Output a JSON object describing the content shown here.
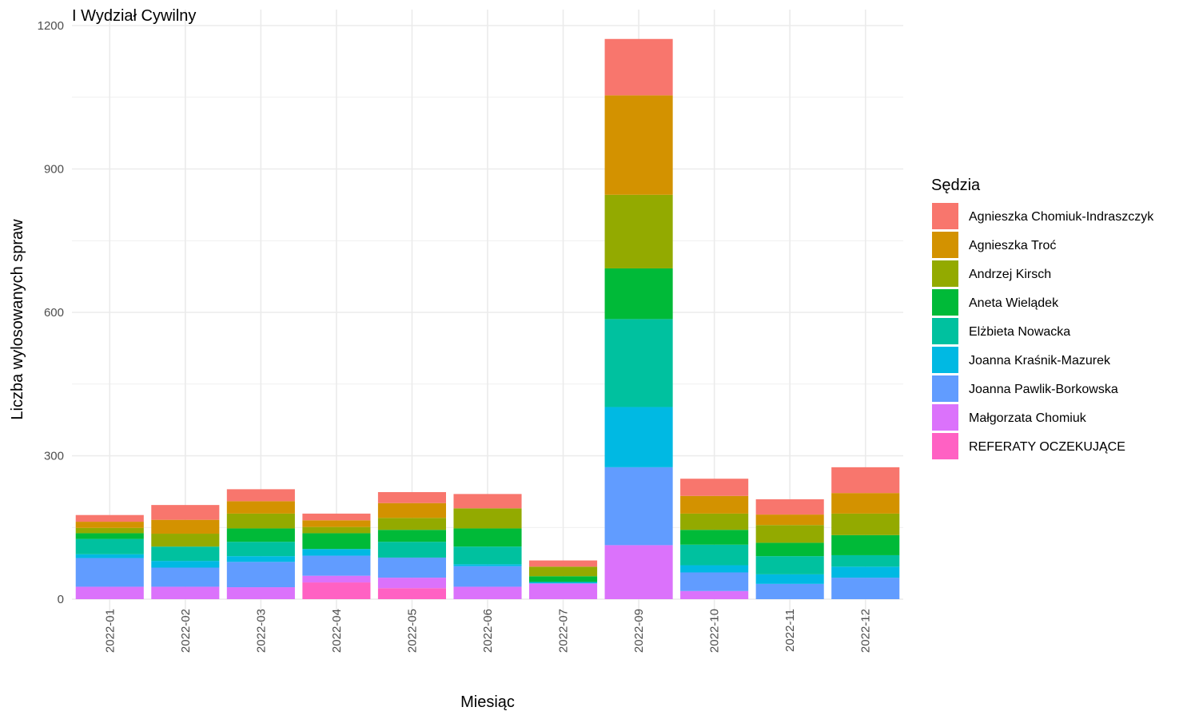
{
  "chart_data": {
    "type": "bar",
    "stacked": true,
    "title": "I Wydział Cywilny",
    "xlabel": "Miesiąc",
    "ylabel": "Liczba wylosowanych spraw",
    "ylim": [
      0,
      1200
    ],
    "yticks": [
      0,
      300,
      600,
      900,
      1200
    ],
    "grid": true,
    "legend_title": "Sędzia",
    "legend_position": "right",
    "categories": [
      "2022-01",
      "2022-02",
      "2022-03",
      "2022-04",
      "2022-05",
      "2022-06",
      "2022-07",
      "2022-09",
      "2022-10",
      "2022-11",
      "2022-12"
    ],
    "series": [
      {
        "name": "Agnieszka Chomiuk-Indraszczyk",
        "color": "#F8766D",
        "values": [
          14,
          31,
          25,
          14,
          23,
          30,
          13,
          118,
          36,
          32,
          54
        ]
      },
      {
        "name": "Agnieszka Troć",
        "color": "#D39200",
        "values": [
          13,
          29,
          26,
          14,
          31,
          0,
          0,
          208,
          37,
          22,
          43
        ]
      },
      {
        "name": "Andrzej Kirsch",
        "color": "#93AA00",
        "values": [
          11,
          27,
          31,
          13,
          25,
          42,
          20,
          154,
          34,
          37,
          45
        ]
      },
      {
        "name": "Aneta Wielądek",
        "color": "#00BA38",
        "values": [
          12,
          0,
          28,
          33,
          25,
          38,
          12,
          106,
          31,
          28,
          42
        ]
      },
      {
        "name": "Elżbieta Nowacka",
        "color": "#00C19F",
        "values": [
          32,
          30,
          30,
          0,
          33,
          37,
          0,
          184,
          43,
          38,
          24
        ]
      },
      {
        "name": "Joanna Kraśnik-Mazurek",
        "color": "#00B9E3",
        "values": [
          8,
          14,
          12,
          14,
          0,
          4,
          3,
          126,
          15,
          20,
          23
        ]
      },
      {
        "name": "Joanna Pawlik-Borkowska",
        "color": "#619CFF",
        "values": [
          60,
          40,
          53,
          42,
          42,
          43,
          0,
          163,
          39,
          32,
          45
        ]
      },
      {
        "name": "Małgorzata Chomiuk",
        "color": "#DB72FB",
        "values": [
          26,
          26,
          25,
          14,
          22,
          26,
          33,
          113,
          17,
          0,
          0
        ]
      },
      {
        "name": "REFERATY OCZEKUJĄCE",
        "color": "#FF61C3",
        "values": [
          0,
          0,
          0,
          35,
          23,
          0,
          0,
          0,
          0,
          0,
          0
        ]
      }
    ]
  }
}
